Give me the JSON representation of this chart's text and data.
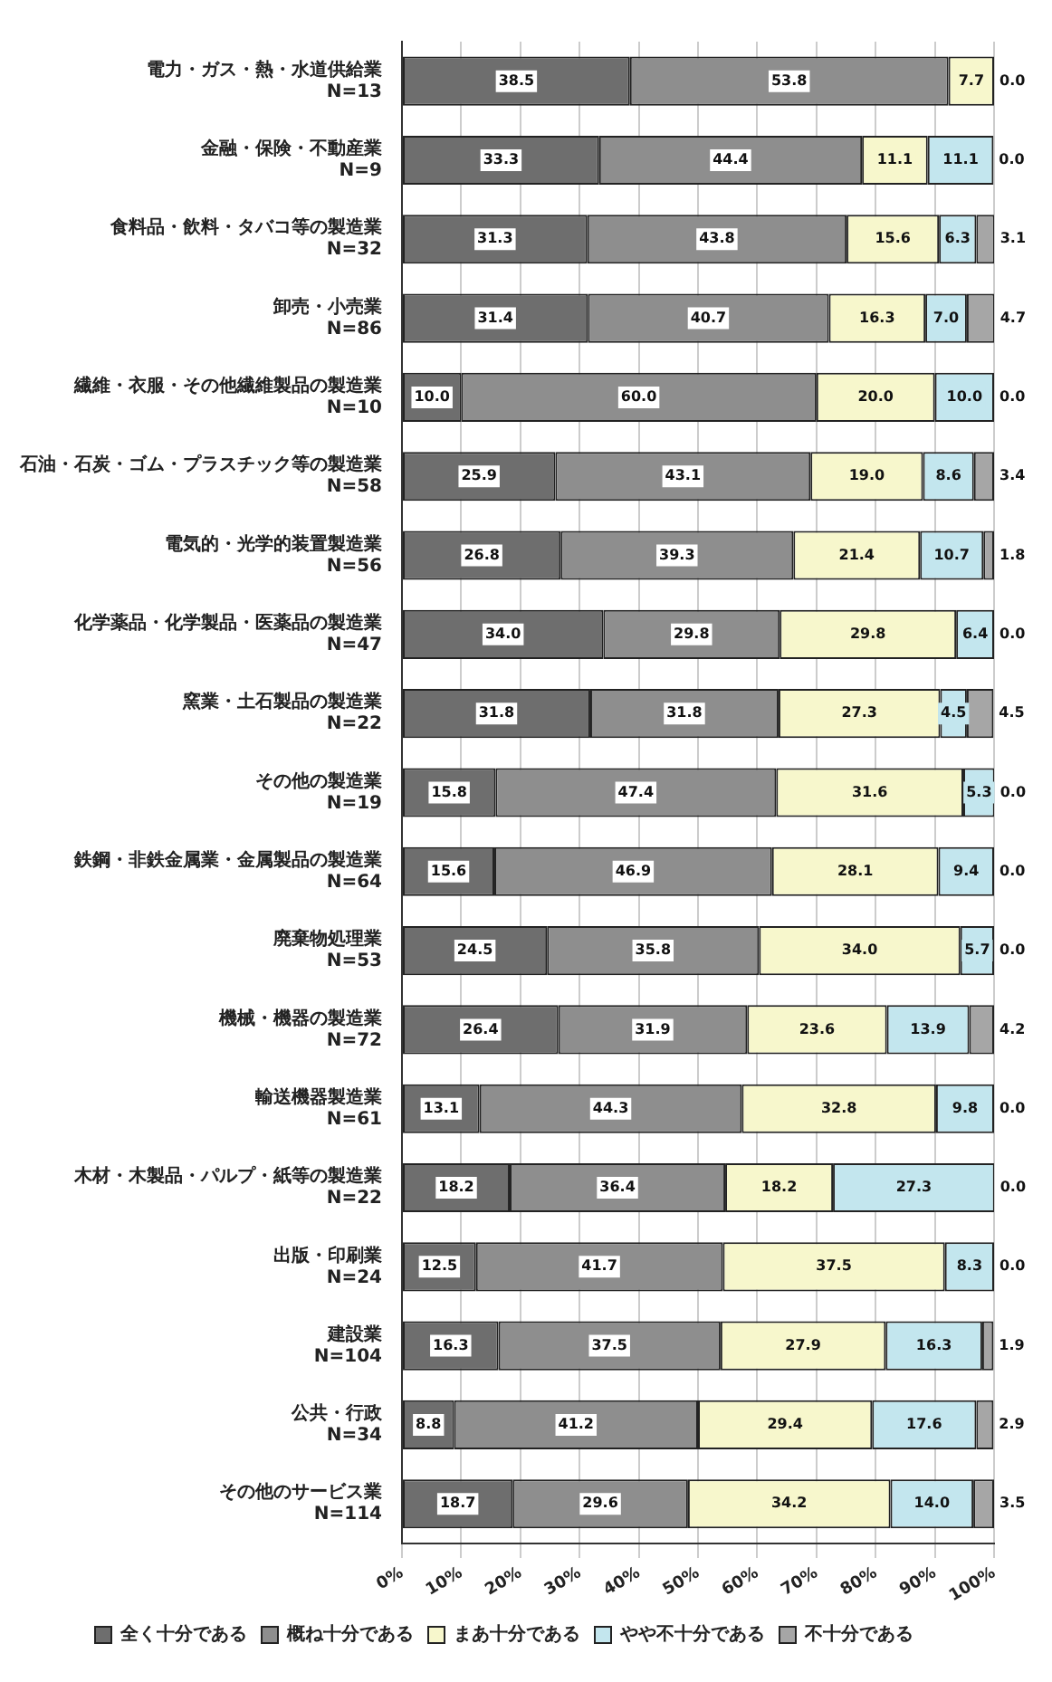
{
  "chart_data": {
    "type": "bar",
    "orientation": "horizontal",
    "stacked": true,
    "categories": [
      "電力・ガス・熱・水道供給業 N=13",
      "金融・保険・不動産業 N=9",
      "食料品・飲料・タバコ等の製造業 N=32",
      "卸売・小売業 N=86",
      "繊維・衣服・その他繊維製品の製造業 N=10",
      "石油・石炭・ゴム・プラスチック等の製造業 N=58",
      "電気的・光学的装置製造業 N=56",
      "化学薬品・化学製品・医薬品の製造業 N=47",
      "窯業・土石製品の製造業 N=22",
      "その他の製造業 N=19",
      "鉄鋼・非鉄金属業・金属製品の製造業 N=64",
      "廃棄物処理業 N=53",
      "機械・機器の製造業 N=72",
      "輸送機器製造業 N=61",
      "木材・木製品・パルプ・紙等の製造業 N=22",
      "出版・印刷業 N=24",
      "建設業 N=104",
      "公共・行政 N=34",
      "その他のサービス業 N=114"
    ],
    "series": [
      {
        "name": "全く十分である",
        "color": "#6e6e6e",
        "values": [
          38.5,
          33.3,
          31.3,
          31.4,
          10.0,
          25.9,
          26.8,
          34.0,
          31.8,
          15.8,
          15.6,
          24.5,
          26.4,
          13.1,
          18.2,
          12.5,
          16.3,
          8.8,
          18.7
        ],
        "value_labels": [
          "38.5",
          "33.3",
          "31.3",
          "31.4",
          "10.0",
          "25.9",
          "26.8",
          "34.0",
          "31.8",
          "15.8",
          "15.6",
          "24.5",
          "26.4",
          "13.1",
          "18.2",
          "12.5",
          "16.3",
          "8.8",
          "18.7"
        ]
      },
      {
        "name": "概ね十分である",
        "color": "#8e8e8e",
        "values": [
          53.8,
          44.4,
          43.8,
          40.7,
          60.0,
          43.1,
          39.3,
          29.8,
          31.8,
          47.4,
          46.9,
          35.8,
          31.9,
          44.3,
          36.4,
          41.7,
          37.5,
          41.2,
          29.6
        ],
        "value_labels": [
          "53.8",
          "44.4",
          "43.8",
          "40.7",
          "60.0",
          "43.1",
          "39.3",
          "29.8",
          "31.8",
          "47.4",
          "46.9",
          "35.8",
          "31.9",
          "44.3",
          "36.4",
          "41.7",
          "37.5",
          "41.2",
          "29.6"
        ]
      },
      {
        "name": "まあ十分である",
        "color": "#f7f7cc",
        "values": [
          7.7,
          11.1,
          15.6,
          16.3,
          20.0,
          19.0,
          21.4,
          29.8,
          27.3,
          31.6,
          28.1,
          34.0,
          23.6,
          32.8,
          18.2,
          37.5,
          27.9,
          29.4,
          34.2
        ],
        "value_labels": [
          "7.7",
          "11.1",
          "15.6",
          "16.3",
          "20.0",
          "19.0",
          "21.4",
          "29.8",
          "27.3",
          "31.6",
          "28.1",
          "34.0",
          "23.6",
          "32.8",
          "18.2",
          "37.5",
          "27.9",
          "29.4",
          "34.2"
        ]
      },
      {
        "name": "やや不十分である",
        "color": "#c3e6ee",
        "values": [
          0.0,
          11.1,
          6.3,
          7.0,
          10.0,
          8.6,
          10.7,
          6.4,
          4.5,
          5.3,
          9.4,
          5.7,
          13.9,
          9.8,
          27.3,
          8.3,
          16.3,
          17.6,
          14.0
        ],
        "value_labels": [
          null,
          "11.1",
          "6.3",
          "7.0",
          "10.0",
          "8.6",
          "10.7",
          "6.4",
          "4.5",
          "5.3",
          "9.4",
          "5.7",
          "13.9",
          "9.8",
          "27.3",
          "8.3",
          "16.3",
          "17.6",
          "14.0"
        ]
      },
      {
        "name": "不十分である",
        "color": "#a6a6a6",
        "values": [
          0.0,
          0.0,
          3.1,
          4.7,
          0.0,
          3.4,
          1.8,
          0.0,
          4.5,
          0.0,
          0.0,
          0.0,
          4.2,
          0.0,
          0.0,
          0.0,
          1.9,
          2.9,
          3.5
        ],
        "value_labels": [
          "0.0",
          "0.0",
          "3.1",
          "4.7",
          "0.0",
          "3.4",
          "1.8",
          "0.0",
          "4.5",
          "0.0",
          "0.0",
          "0.0",
          "4.2",
          "0.0",
          "0.0",
          "0.0",
          "1.9",
          "2.9",
          "3.5"
        ]
      }
    ],
    "xlim": [
      0,
      100
    ],
    "xticks": [
      {
        "value": 0,
        "label": "0%"
      },
      {
        "value": 10,
        "label": "10%"
      },
      {
        "value": 20,
        "label": "20%"
      },
      {
        "value": 30,
        "label": "30%"
      },
      {
        "value": 40,
        "label": "40%"
      },
      {
        "value": 50,
        "label": "50%"
      },
      {
        "value": 60,
        "label": "60%"
      },
      {
        "value": 70,
        "label": "70%"
      },
      {
        "value": 80,
        "label": "80%"
      },
      {
        "value": 90,
        "label": "90%"
      },
      {
        "value": 100,
        "label": "100%"
      }
    ],
    "grid": "x",
    "legend": "bottom"
  }
}
